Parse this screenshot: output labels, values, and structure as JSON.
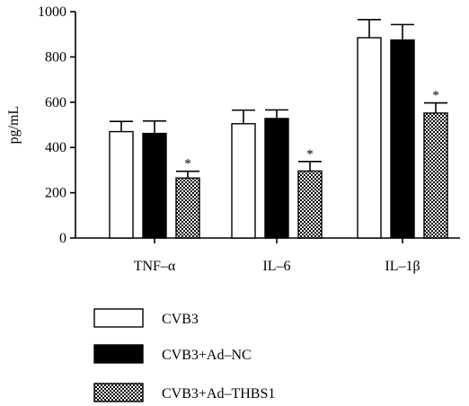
{
  "chart_data": {
    "type": "bar",
    "ylabel": "pg/mL",
    "ylim": [
      0,
      1000
    ],
    "yticks": [
      0,
      200,
      400,
      600,
      800,
      1000
    ],
    "categories": [
      "TNF–α",
      "IL–6",
      "IL–1β"
    ],
    "series": [
      {
        "name": "CVB3",
        "fill": "white",
        "values": [
          470,
          505,
          885
        ],
        "errors": [
          45,
          60,
          80
        ]
      },
      {
        "name": "CVB3+Ad–NC",
        "fill": "black",
        "values": [
          462,
          528,
          875
        ],
        "errors": [
          55,
          38,
          68
        ]
      },
      {
        "name": "CVB3+Ad–THBS1",
        "fill": "checker",
        "values": [
          265,
          296,
          552
        ],
        "errors": [
          30,
          42,
          45
        ]
      }
    ],
    "significance": [
      [
        "",
        "",
        "*"
      ],
      [
        "",
        "",
        "*"
      ],
      [
        "",
        "",
        "*"
      ]
    ]
  }
}
